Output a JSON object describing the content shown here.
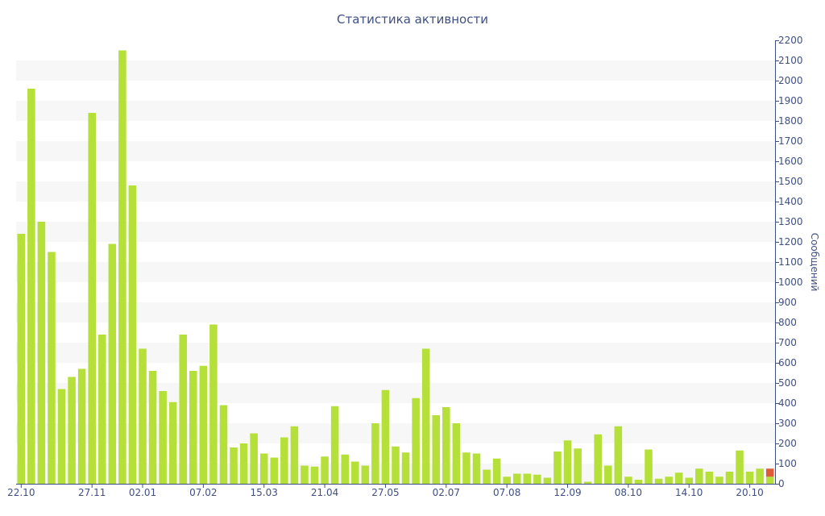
{
  "chart_data": {
    "type": "bar",
    "title": "Статистика активности",
    "ylabel": "Сообщений",
    "xlabel": "",
    "ylim": [
      0,
      2200
    ],
    "y_ticks": [
      0,
      100,
      200,
      300,
      400,
      500,
      600,
      700,
      800,
      900,
      1000,
      1100,
      1200,
      1300,
      1400,
      1500,
      1600,
      1700,
      1800,
      1900,
      2000,
      2100,
      2200
    ],
    "x_tick_labels": [
      "22.10",
      "27.11",
      "02.01",
      "07.02",
      "15.03",
      "21.04",
      "27.05",
      "02.07",
      "07.08",
      "12.09",
      "08.10",
      "14.10",
      "20.10"
    ],
    "x_tick_positions": [
      0,
      7,
      12,
      18,
      24,
      30,
      36,
      42,
      48,
      54,
      60,
      66,
      72
    ],
    "grid": "horizontal bands",
    "legend": "none",
    "colors": {
      "bar": "#b5e03a",
      "highlight": "#e05a35",
      "band": "#f7f7f7",
      "axis": "#3e4f86"
    },
    "values": [
      1240,
      1960,
      1300,
      1150,
      470,
      530,
      570,
      1840,
      740,
      1190,
      2150,
      1480,
      670,
      560,
      460,
      405,
      740,
      560,
      585,
      790,
      390,
      180,
      200,
      250,
      150,
      130,
      230,
      285,
      90,
      85,
      135,
      385,
      145,
      110,
      90,
      300,
      465,
      185,
      155,
      425,
      670,
      340,
      380,
      300,
      155,
      150,
      70,
      125,
      35,
      50,
      50,
      45,
      30,
      160,
      215,
      175,
      10,
      245,
      90,
      285,
      35,
      20,
      170,
      25,
      35,
      55,
      30,
      75,
      60,
      35,
      60,
      165,
      60,
      75,
      75
    ],
    "last_bar_split": {
      "green": 35,
      "red": 40
    }
  }
}
